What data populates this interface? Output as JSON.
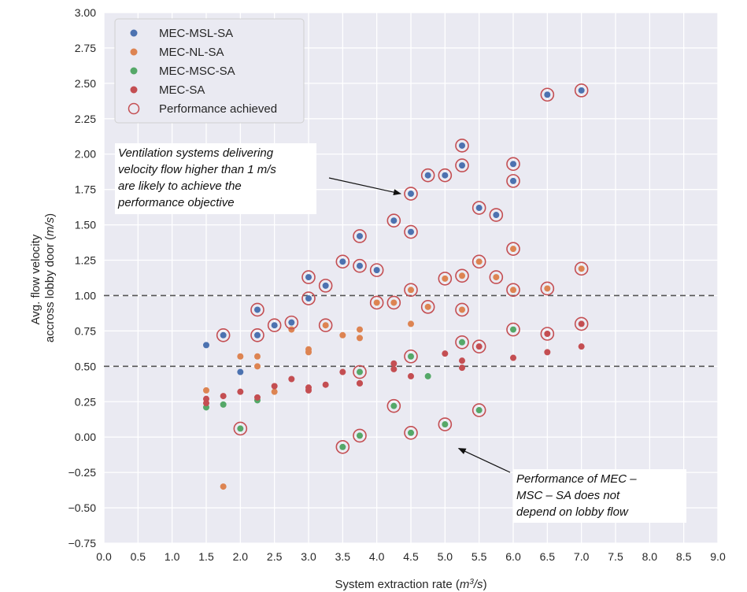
{
  "chart_data": {
    "type": "scatter",
    "title": "",
    "xlabel": "System extraction rate (m³/s)",
    "ylabel_line1": "Avg. flow velocity",
    "ylabel_line2": "accross lobby door (m/s)",
    "xlim": [
      0,
      9
    ],
    "ylim": [
      -0.75,
      3.0
    ],
    "x_ticks": [
      "0.0",
      "0.5",
      "1.0",
      "1.5",
      "2.0",
      "2.5",
      "3.0",
      "3.5",
      "4.0",
      "4.5",
      "5.0",
      "5.5",
      "6.0",
      "6.5",
      "7.0",
      "7.5",
      "8.0",
      "8.5",
      "9.0"
    ],
    "y_ticks": [
      "-0.75",
      "-0.50",
      "-0.25",
      "0.00",
      "0.25",
      "0.50",
      "0.75",
      "1.00",
      "1.25",
      "1.50",
      "1.75",
      "2.00",
      "2.25",
      "2.50",
      "2.75",
      "3.00"
    ],
    "grid": true,
    "background": "#eaeaf2",
    "legend_position": "top-left",
    "reference_lines": [
      1.0,
      0.5
    ],
    "series": [
      {
        "name": "MEC-MSL-SA",
        "color": "#4c72b0",
        "x": [
          1.5,
          1.75,
          2.0,
          2.25,
          2.25,
          2.5,
          2.75,
          3.0,
          3.0,
          3.25,
          3.5,
          3.75,
          3.75,
          4.0,
          4.25,
          4.5,
          4.5,
          4.75,
          5.0,
          5.25,
          5.25,
          5.5,
          5.75,
          6.0,
          6.0,
          6.5,
          7.0
        ],
        "y": [
          0.65,
          0.72,
          0.46,
          0.9,
          0.72,
          0.79,
          0.81,
          1.13,
          0.98,
          1.07,
          1.24,
          1.21,
          1.42,
          1.18,
          1.53,
          1.45,
          1.72,
          1.85,
          1.85,
          1.92,
          2.06,
          1.62,
          1.57,
          1.93,
          1.81,
          2.42,
          2.45
        ],
        "achieved": [
          false,
          true,
          false,
          true,
          true,
          true,
          true,
          true,
          true,
          true,
          true,
          true,
          true,
          true,
          true,
          true,
          true,
          true,
          true,
          true,
          true,
          true,
          true,
          true,
          true,
          true,
          true
        ]
      },
      {
        "name": "MEC-NL-SA",
        "color": "#dd8452",
        "x": [
          1.5,
          1.75,
          2.0,
          2.25,
          2.25,
          2.5,
          2.75,
          3.0,
          3.0,
          3.25,
          3.5,
          3.75,
          3.75,
          4.0,
          4.25,
          4.5,
          4.5,
          4.75,
          5.0,
          5.25,
          5.25,
          5.5,
          5.75,
          6.0,
          6.0,
          6.5,
          7.0
        ],
        "y": [
          0.33,
          -0.35,
          0.57,
          0.57,
          0.5,
          0.32,
          0.76,
          0.62,
          0.6,
          0.79,
          0.72,
          0.76,
          0.7,
          0.95,
          0.95,
          0.8,
          1.04,
          0.92,
          1.12,
          1.14,
          0.9,
          1.24,
          1.13,
          1.33,
          1.04,
          1.05,
          1.19
        ],
        "achieved": [
          false,
          false,
          false,
          false,
          false,
          false,
          false,
          false,
          false,
          true,
          false,
          false,
          false,
          true,
          true,
          false,
          true,
          true,
          true,
          true,
          true,
          true,
          true,
          true,
          true,
          true,
          true
        ]
      },
      {
        "name": "MEC-MSC-SA",
        "color": "#55a868",
        "x": [
          1.5,
          1.75,
          2.0,
          2.25,
          3.5,
          3.75,
          3.75,
          4.25,
          4.5,
          4.5,
          4.75,
          5.0,
          5.25,
          5.5,
          6.0
        ],
        "y": [
          0.21,
          0.23,
          0.06,
          0.26,
          -0.07,
          0.01,
          0.46,
          0.22,
          0.57,
          0.03,
          0.43,
          0.09,
          0.67,
          0.19,
          0.76
        ],
        "achieved": [
          false,
          false,
          true,
          false,
          true,
          true,
          true,
          true,
          true,
          true,
          false,
          true,
          true,
          true,
          true
        ]
      },
      {
        "name": "MEC-SA",
        "color": "#c44e52",
        "x": [
          1.5,
          1.5,
          1.75,
          2.0,
          2.25,
          2.5,
          2.75,
          3.0,
          3.0,
          3.25,
          3.5,
          3.75,
          3.75,
          4.25,
          4.25,
          4.5,
          5.0,
          5.25,
          5.25,
          5.5,
          6.0,
          6.5,
          6.5,
          7.0,
          7.0
        ],
        "y": [
          0.27,
          0.24,
          0.29,
          0.32,
          0.28,
          0.36,
          0.41,
          0.35,
          0.33,
          0.37,
          0.46,
          0.38,
          0.38,
          0.52,
          0.48,
          0.43,
          0.59,
          0.54,
          0.49,
          0.64,
          0.56,
          0.6,
          0.73,
          0.64,
          0.8
        ],
        "achieved": [
          false,
          false,
          false,
          false,
          false,
          false,
          false,
          false,
          false,
          false,
          false,
          false,
          false,
          false,
          false,
          false,
          false,
          false,
          false,
          true,
          false,
          false,
          true,
          false,
          true
        ]
      }
    ],
    "performance_marker": {
      "name": "Performance achieved",
      "edge_color": "#c44e52"
    },
    "annotations": [
      {
        "lines": [
          "Ventilation systems delivering",
          "velocity flow higher than 1 m/s",
          "are likely to achieve the",
          "performance objective"
        ],
        "arrow_to_data": [
          4.35,
          1.72
        ]
      },
      {
        "lines": [
          "Performance of MEC –",
          "MSC – SA does not",
          "depend on lobby flow"
        ],
        "arrow_to_data": [
          5.2,
          -0.08
        ]
      }
    ]
  }
}
